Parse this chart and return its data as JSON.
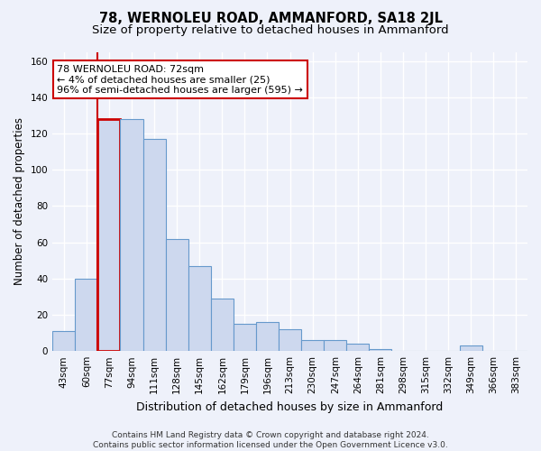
{
  "title": "78, WERNOLEU ROAD, AMMANFORD, SA18 2JL",
  "subtitle": "Size of property relative to detached houses in Ammanford",
  "xlabel": "Distribution of detached houses by size in Ammanford",
  "ylabel": "Number of detached properties",
  "categories": [
    "43sqm",
    "60sqm",
    "77sqm",
    "94sqm",
    "111sqm",
    "128sqm",
    "145sqm",
    "162sqm",
    "179sqm",
    "196sqm",
    "213sqm",
    "230sqm",
    "247sqm",
    "264sqm",
    "281sqm",
    "298sqm",
    "315sqm",
    "332sqm",
    "349sqm",
    "366sqm",
    "383sqm"
  ],
  "values": [
    11,
    40,
    128,
    128,
    117,
    62,
    47,
    29,
    15,
    16,
    12,
    6,
    6,
    4,
    1,
    0,
    0,
    0,
    3,
    0,
    0
  ],
  "bar_color": "#cdd8ee",
  "bar_edge_color": "#6699cc",
  "highlight_index": 2,
  "highlight_line_color": "#cc0000",
  "ylim": [
    0,
    165
  ],
  "yticks": [
    0,
    20,
    40,
    60,
    80,
    100,
    120,
    140,
    160
  ],
  "annotation_text": "78 WERNOLEU ROAD: 72sqm\n← 4% of detached houses are smaller (25)\n96% of semi-detached houses are larger (595) →",
  "annotation_box_color": "#ffffff",
  "annotation_box_edge_color": "#cc0000",
  "footer_text": "Contains HM Land Registry data © Crown copyright and database right 2024.\nContains public sector information licensed under the Open Government Licence v3.0.",
  "background_color": "#eef1fa",
  "grid_color": "#ffffff",
  "title_fontsize": 10.5,
  "subtitle_fontsize": 9.5,
  "ylabel_fontsize": 8.5,
  "xlabel_fontsize": 9,
  "tick_fontsize": 7.5,
  "annotation_fontsize": 8,
  "footer_fontsize": 6.5
}
